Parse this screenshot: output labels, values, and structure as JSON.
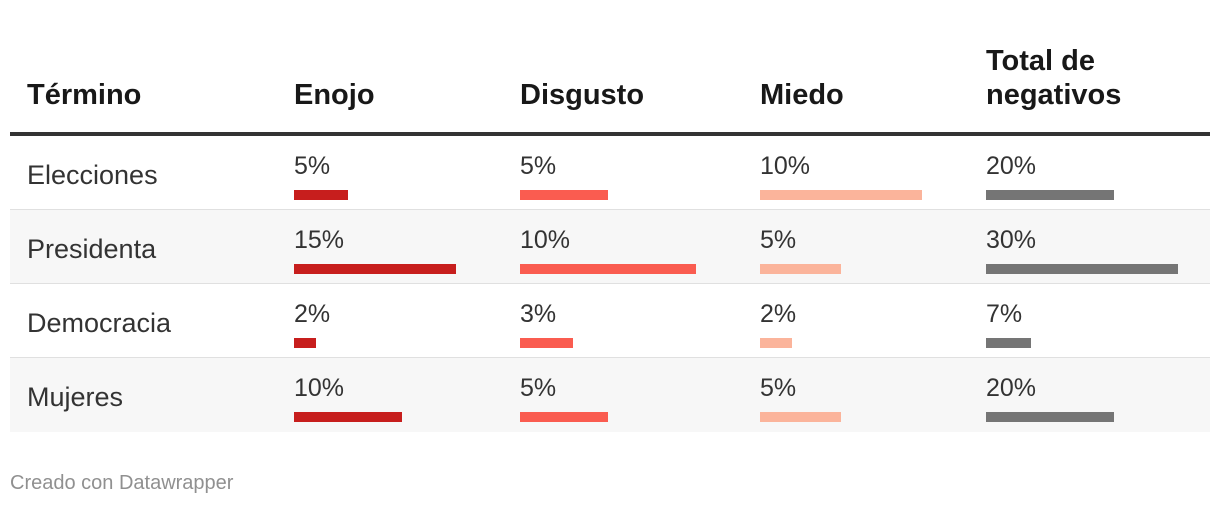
{
  "chart_data": {
    "type": "table",
    "columns": [
      "Término",
      "Enojo",
      "Disgusto",
      "Miedo",
      "Total de negativos"
    ],
    "colors": {
      "Enojo": "#c71e1d",
      "Disgusto": "#fa5c50",
      "Miedo": "#fbb49b",
      "Total de negativos": "#757575"
    },
    "rows": [
      {
        "term": "Elecciones",
        "values": [
          5,
          5,
          10,
          20
        ],
        "labels": [
          "5%",
          "5%",
          "10%",
          "20%"
        ]
      },
      {
        "term": "Presidenta",
        "values": [
          15,
          10,
          5,
          30
        ],
        "labels": [
          "15%",
          "10%",
          "5%",
          "30%"
        ]
      },
      {
        "term": "Democracia",
        "values": [
          2,
          3,
          2,
          7
        ],
        "labels": [
          "2%",
          "3%",
          "2%",
          "7%"
        ]
      },
      {
        "term": "Mujeres",
        "values": [
          10,
          5,
          5,
          20
        ],
        "labels": [
          "10%",
          "5%",
          "5%",
          "20%"
        ]
      }
    ]
  },
  "footer": "Creado con Datawrapper"
}
